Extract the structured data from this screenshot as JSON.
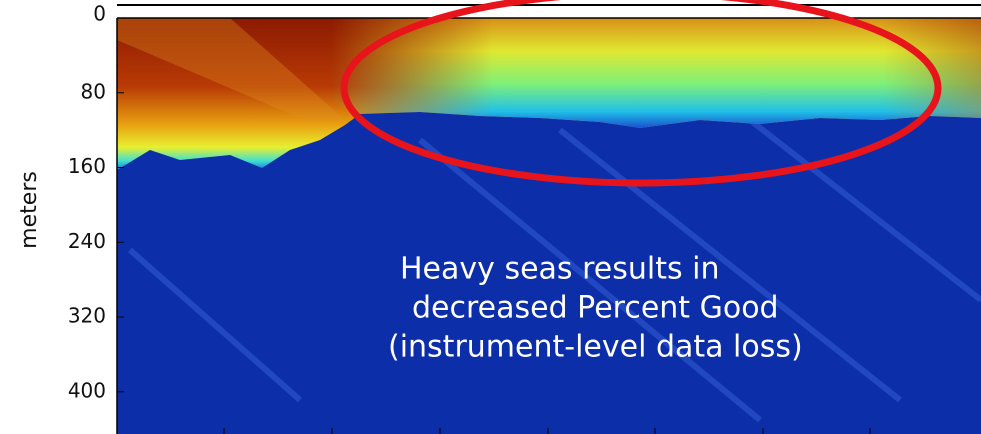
{
  "chart_data": {
    "type": "heatmap",
    "y_label": "meters",
    "ylim": [
      0,
      442
    ],
    "y_inverted": true,
    "yticks": [
      0,
      80,
      160,
      240,
      320,
      400
    ],
    "annotation": [
      "Heavy seas results in",
      "decreased Percent Good",
      "(instrument-level data loss)"
    ],
    "annotation_color": "#ffffff",
    "highlight_color": "#e8141b"
  }
}
